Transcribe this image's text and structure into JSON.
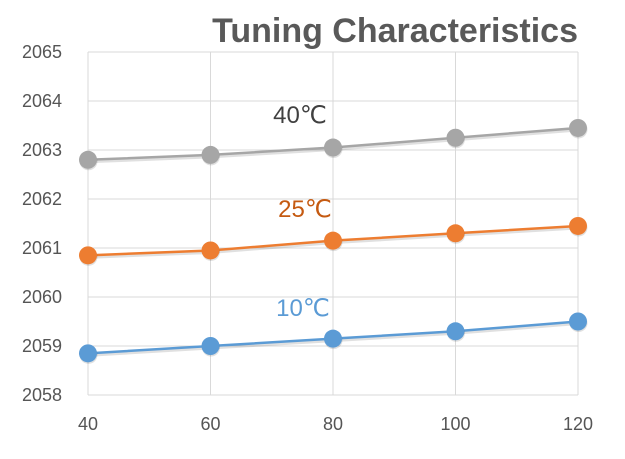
{
  "chart_data": {
    "type": "line",
    "title": "Tuning Characteristics",
    "xlabel": "",
    "ylabel": "",
    "x": [
      40,
      60,
      80,
      100,
      120
    ],
    "xlim": [
      40,
      120
    ],
    "ylim": [
      2058,
      2065
    ],
    "yticks": [
      2058,
      2059,
      2060,
      2061,
      2062,
      2063,
      2064,
      2065
    ],
    "grid": true,
    "legend": "inline labels above each line",
    "series": [
      {
        "name": "40℃",
        "color": "#a6a6a6",
        "values": [
          2062.8,
          2062.9,
          2063.05,
          2063.25,
          2063.45
        ]
      },
      {
        "name": "25℃",
        "color": "#ed7d31",
        "values": [
          2060.85,
          2060.95,
          2061.15,
          2061.3,
          2061.45
        ]
      },
      {
        "name": "10℃",
        "color": "#5b9bd5",
        "values": [
          2058.85,
          2059.0,
          2059.15,
          2059.3,
          2059.5
        ]
      }
    ],
    "title_color": "#595959",
    "label_colors": [
      "#404040",
      "#c55a11",
      "#5b9bd5"
    ]
  }
}
